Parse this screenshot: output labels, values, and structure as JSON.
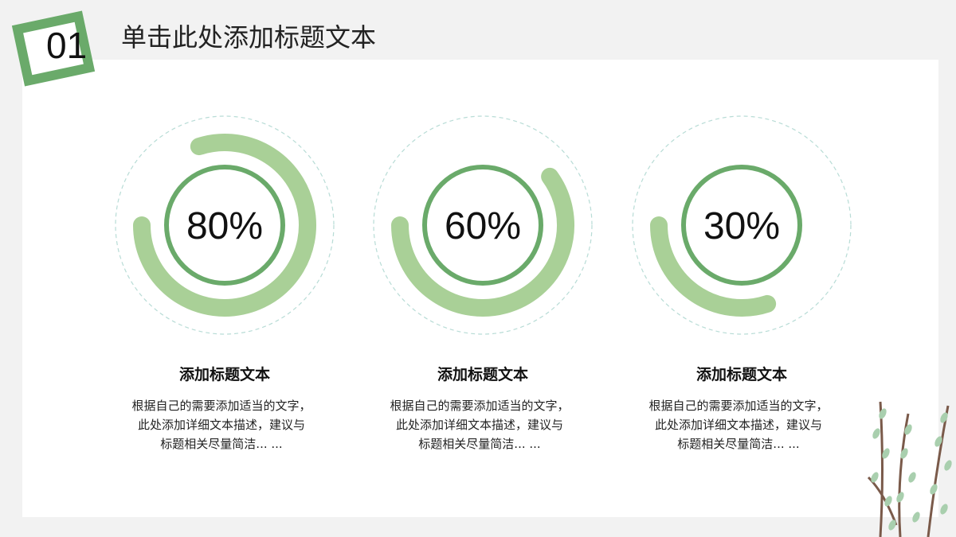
{
  "header": {
    "number": "01",
    "title": "单击此处添加标题文本"
  },
  "colors": {
    "arc": "#a9d097",
    "inner_ring": "#6aaa6a",
    "dashed": "#b8dcd6",
    "badge": "#6aaa6a"
  },
  "items": [
    {
      "percent": 80,
      "label": "80%",
      "title": "添加标题文本",
      "desc": "根据自己的需要添加适当的文字，\n此处添加详细文本描述，建议与\n标题相关尽量简洁... ..."
    },
    {
      "percent": 60,
      "label": "60%",
      "title": "添加标题文本",
      "desc": "根据自己的需要添加适当的文字，\n此处添加详细文本描述，建议与\n标题相关尽量简洁... ..."
    },
    {
      "percent": 30,
      "label": "30%",
      "title": "添加标题文本",
      "desc": "根据自己的需要添加适当的文字，\n此处添加详细文本描述，建议与\n标题相关尽量简洁... ..."
    }
  ]
}
